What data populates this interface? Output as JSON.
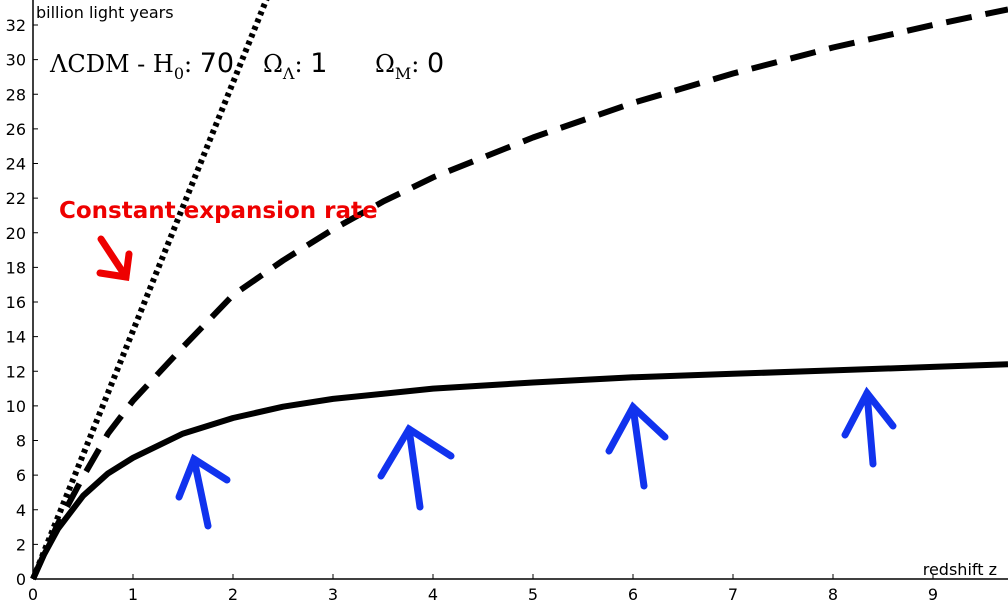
{
  "chart_data": {
    "type": "line",
    "ylabel": "billion light years",
    "xlabel": "redshift z",
    "xlim": [
      0,
      9.75
    ],
    "ylim": [
      0,
      32
    ],
    "x_ticks": [
      "0",
      "1",
      "2",
      "3",
      "4",
      "5",
      "6",
      "7",
      "8",
      "9"
    ],
    "y_ticks": [
      "0",
      "2",
      "4",
      "6",
      "8",
      "10",
      "12",
      "14",
      "16",
      "18",
      "20",
      "22",
      "24",
      "26",
      "28",
      "30",
      "32"
    ],
    "title": {
      "model": "ΛCDM - H",
      "h0_sub": "0",
      "h0_sep": ": ",
      "h0_value": "70",
      "omega_lambda": "Ω",
      "omega_lambda_sub": "Λ",
      "omega_lambda_sep": ": ",
      "omega_lambda_value": "1",
      "omega_m": "Ω",
      "omega_m_sub": "M",
      "omega_m_sep": ": ",
      "omega_m_value": "0"
    },
    "series": [
      {
        "style": "solid",
        "x": [
          0,
          0.1,
          0.25,
          0.5,
          0.75,
          1,
          1.5,
          2,
          2.5,
          3,
          4,
          5,
          6,
          7,
          8,
          9,
          9.75
        ],
        "y": [
          0,
          1.3,
          2.9,
          4.8,
          6.1,
          7.0,
          8.4,
          9.3,
          9.95,
          10.4,
          11.0,
          11.35,
          11.65,
          11.85,
          12.05,
          12.25,
          12.4
        ]
      },
      {
        "style": "dashed",
        "x": [
          0,
          0.25,
          0.5,
          0.75,
          1,
          1.5,
          2,
          2.5,
          3,
          3.5,
          4,
          5,
          6,
          7,
          8,
          9,
          9.75
        ],
        "y": [
          0,
          3.2,
          5.9,
          8.4,
          10.3,
          13.4,
          16.4,
          18.4,
          20.2,
          21.8,
          23.2,
          25.5,
          27.5,
          29.2,
          30.7,
          32.0,
          32.9
        ]
      },
      {
        "style": "dotted",
        "x": [
          0,
          2.35
        ],
        "y": [
          0,
          33.7
        ]
      }
    ],
    "annotations": {
      "constant_expansion": "Constant expansion rate",
      "constant_expansion_color": "#ee0000",
      "arrow_color": "#1133ee"
    }
  }
}
